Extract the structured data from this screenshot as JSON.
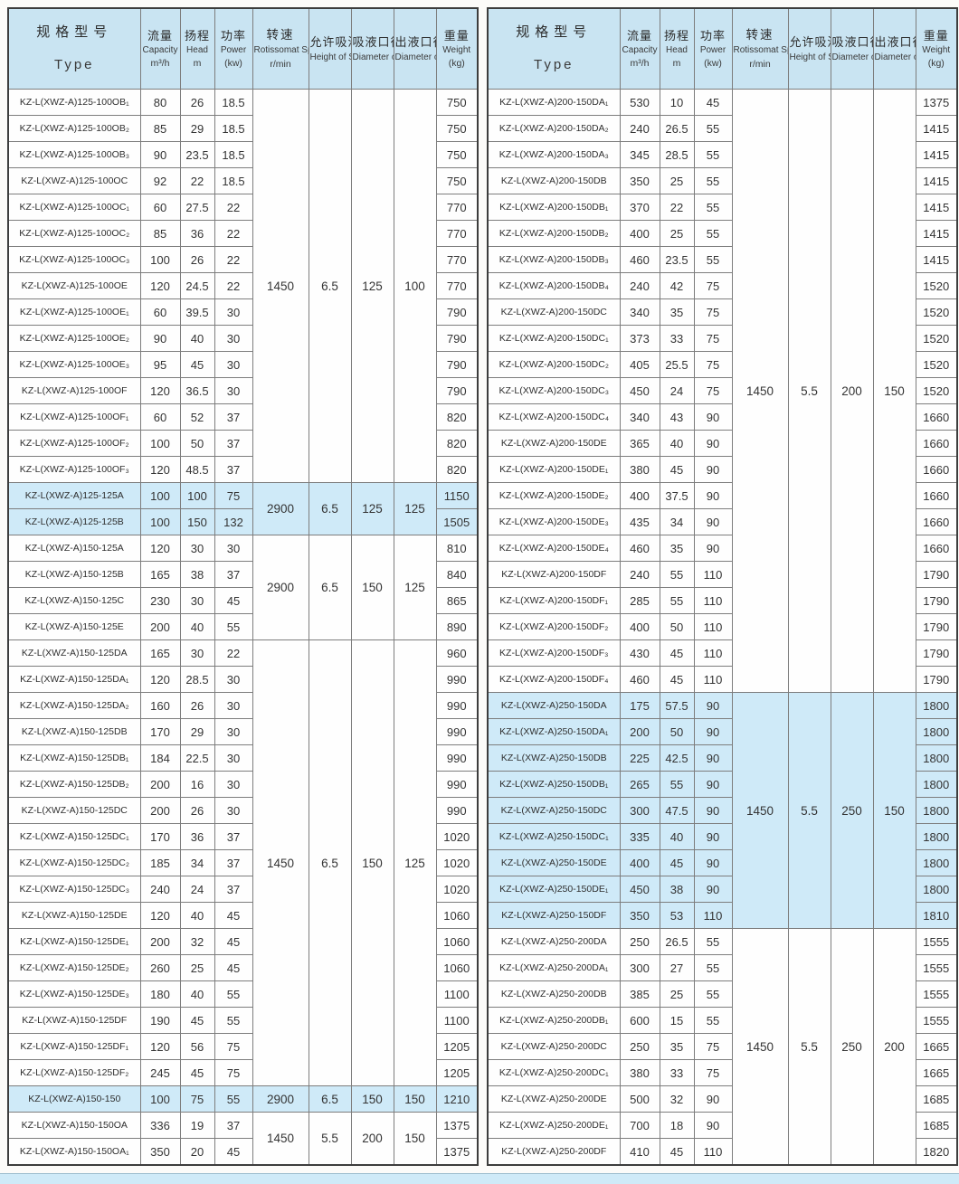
{
  "columns": [
    {
      "zh": "规格型号",
      "en": "Type"
    },
    {
      "zh": "流量",
      "en": "Capacity",
      "unit": "m³/h"
    },
    {
      "zh": "扬程",
      "en": "Head",
      "unit": "m"
    },
    {
      "zh": "功率",
      "en": "Power",
      "unit": "(kw)"
    },
    {
      "zh": "转速",
      "en": "Rotissomat Speed",
      "unit": "r/min"
    },
    {
      "zh": "允许吸深",
      "en": "Height of Suciton"
    },
    {
      "zh": "吸液口径",
      "en": "Diameter of Inlet"
    },
    {
      "zh": "出液口径",
      "en": "Diameter of Outlet"
    },
    {
      "zh": "重量",
      "en": "Weight",
      "unit": "(kg)"
    }
  ],
  "tables": [
    {
      "rows": [
        {
          "type": "KZ-L(XWZ-A)125-100OB₁",
          "capacity": "80",
          "head": "26",
          "power": "18.5",
          "weight": "750"
        },
        {
          "type": "KZ-L(XWZ-A)125-100OB₂",
          "capacity": "85",
          "head": "29",
          "power": "18.5",
          "weight": "750"
        },
        {
          "type": "KZ-L(XWZ-A)125-100OB₃",
          "capacity": "90",
          "head": "23.5",
          "power": "18.5",
          "weight": "750"
        },
        {
          "type": "KZ-L(XWZ-A)125-100OC",
          "capacity": "92",
          "head": "22",
          "power": "18.5",
          "weight": "750"
        },
        {
          "type": "KZ-L(XWZ-A)125-100OC₁",
          "capacity": "60",
          "head": "27.5",
          "power": "22",
          "weight": "770"
        },
        {
          "type": "KZ-L(XWZ-A)125-100OC₂",
          "capacity": "85",
          "head": "36",
          "power": "22",
          "weight": "770"
        },
        {
          "type": "KZ-L(XWZ-A)125-100OC₃",
          "capacity": "100",
          "head": "26",
          "power": "22",
          "weight": "770"
        },
        {
          "type": "KZ-L(XWZ-A)125-100OE",
          "capacity": "120",
          "head": "24.5",
          "power": "22",
          "weight": "770"
        },
        {
          "type": "KZ-L(XWZ-A)125-100OE₁",
          "capacity": "60",
          "head": "39.5",
          "power": "30",
          "weight": "790"
        },
        {
          "type": "KZ-L(XWZ-A)125-100OE₂",
          "capacity": "90",
          "head": "40",
          "power": "30",
          "weight": "790"
        },
        {
          "type": "KZ-L(XWZ-A)125-100OE₃",
          "capacity": "95",
          "head": "45",
          "power": "30",
          "weight": "790"
        },
        {
          "type": "KZ-L(XWZ-A)125-100OF",
          "capacity": "120",
          "head": "36.5",
          "power": "30",
          "weight": "790"
        },
        {
          "type": "KZ-L(XWZ-A)125-100OF₁",
          "capacity": "60",
          "head": "52",
          "power": "37",
          "weight": "820"
        },
        {
          "type": "KZ-L(XWZ-A)125-100OF₂",
          "capacity": "100",
          "head": "50",
          "power": "37",
          "weight": "820"
        },
        {
          "type": "KZ-L(XWZ-A)125-100OF₃",
          "capacity": "120",
          "head": "48.5",
          "power": "37",
          "weight": "820"
        },
        {
          "type": "KZ-L(XWZ-A)125-125A",
          "capacity": "100",
          "head": "100",
          "power": "75",
          "weight": "1150",
          "highlight": true
        },
        {
          "type": "KZ-L(XWZ-A)125-125B",
          "capacity": "100",
          "head": "150",
          "power": "132",
          "weight": "1505",
          "highlight": true
        },
        {
          "type": "KZ-L(XWZ-A)150-125A",
          "capacity": "120",
          "head": "30",
          "power": "30",
          "weight": "810"
        },
        {
          "type": "KZ-L(XWZ-A)150-125B",
          "capacity": "165",
          "head": "38",
          "power": "37",
          "weight": "840"
        },
        {
          "type": "KZ-L(XWZ-A)150-125C",
          "capacity": "230",
          "head": "30",
          "power": "45",
          "weight": "865"
        },
        {
          "type": "KZ-L(XWZ-A)150-125E",
          "capacity": "200",
          "head": "40",
          "power": "55",
          "weight": "890"
        },
        {
          "type": "KZ-L(XWZ-A)150-125DA",
          "capacity": "165",
          "head": "30",
          "power": "22",
          "weight": "960"
        },
        {
          "type": "KZ-L(XWZ-A)150-125DA₁",
          "capacity": "120",
          "head": "28.5",
          "power": "30",
          "weight": "990"
        },
        {
          "type": "KZ-L(XWZ-A)150-125DA₂",
          "capacity": "160",
          "head": "26",
          "power": "30",
          "weight": "990"
        },
        {
          "type": "KZ-L(XWZ-A)150-125DB",
          "capacity": "170",
          "head": "29",
          "power": "30",
          "weight": "990"
        },
        {
          "type": "KZ-L(XWZ-A)150-125DB₁",
          "capacity": "184",
          "head": "22.5",
          "power": "30",
          "weight": "990"
        },
        {
          "type": "KZ-L(XWZ-A)150-125DB₂",
          "capacity": "200",
          "head": "16",
          "power": "30",
          "weight": "990"
        },
        {
          "type": "KZ-L(XWZ-A)150-125DC",
          "capacity": "200",
          "head": "26",
          "power": "30",
          "weight": "990"
        },
        {
          "type": "KZ-L(XWZ-A)150-125DC₁",
          "capacity": "170",
          "head": "36",
          "power": "37",
          "weight": "1020"
        },
        {
          "type": "KZ-L(XWZ-A)150-125DC₂",
          "capacity": "185",
          "head": "34",
          "power": "37",
          "weight": "1020"
        },
        {
          "type": "KZ-L(XWZ-A)150-125DC₃",
          "capacity": "240",
          "head": "24",
          "power": "37",
          "weight": "1020"
        },
        {
          "type": "KZ-L(XWZ-A)150-125DE",
          "capacity": "120",
          "head": "40",
          "power": "45",
          "weight": "1060"
        },
        {
          "type": "KZ-L(XWZ-A)150-125DE₁",
          "capacity": "200",
          "head": "32",
          "power": "45",
          "weight": "1060"
        },
        {
          "type": "KZ-L(XWZ-A)150-125DE₂",
          "capacity": "260",
          "head": "25",
          "power": "45",
          "weight": "1060"
        },
        {
          "type": "KZ-L(XWZ-A)150-125DE₃",
          "capacity": "180",
          "head": "40",
          "power": "55",
          "weight": "1100"
        },
        {
          "type": "KZ-L(XWZ-A)150-125DF",
          "capacity": "190",
          "head": "45",
          "power": "55",
          "weight": "1100"
        },
        {
          "type": "KZ-L(XWZ-A)150-125DF₁",
          "capacity": "120",
          "head": "56",
          "power": "75",
          "weight": "1205"
        },
        {
          "type": "KZ-L(XWZ-A)150-125DF₂",
          "capacity": "245",
          "head": "45",
          "power": "75",
          "weight": "1205"
        },
        {
          "type": "KZ-L(XWZ-A)150-150",
          "capacity": "100",
          "head": "75",
          "power": "55",
          "weight": "1210",
          "highlight": true
        },
        {
          "type": "KZ-L(XWZ-A)150-150OA",
          "capacity": "336",
          "head": "19",
          "power": "37",
          "weight": "1375"
        },
        {
          "type": "KZ-L(XWZ-A)150-150OA₁",
          "capacity": "350",
          "head": "20",
          "power": "45",
          "weight": "1375"
        }
      ],
      "groups": [
        {
          "start": 0,
          "span": 15,
          "speed": "1450",
          "suction": "6.5",
          "inlet": "125",
          "outlet": "100"
        },
        {
          "start": 15,
          "span": 2,
          "speed": "2900",
          "suction": "6.5",
          "inlet": "125",
          "outlet": "125",
          "highlight": true
        },
        {
          "start": 17,
          "span": 4,
          "speed": "2900",
          "suction": "6.5",
          "inlet": "150",
          "outlet": "125"
        },
        {
          "start": 21,
          "span": 17,
          "speed": "1450",
          "suction": "6.5",
          "inlet": "150",
          "outlet": "125"
        },
        {
          "start": 38,
          "span": 1,
          "speed": "2900",
          "suction": "6.5",
          "inlet": "150",
          "outlet": "150",
          "highlight": true
        },
        {
          "start": 39,
          "span": 2,
          "speed": "1450",
          "suction": "5.5",
          "inlet": "200",
          "outlet": "150"
        }
      ]
    },
    {
      "rows": [
        {
          "type": "KZ-L(XWZ-A)200-150DA₁",
          "capacity": "530",
          "head": "10",
          "power": "45",
          "weight": "1375"
        },
        {
          "type": "KZ-L(XWZ-A)200-150DA₂",
          "capacity": "240",
          "head": "26.5",
          "power": "55",
          "weight": "1415"
        },
        {
          "type": "KZ-L(XWZ-A)200-150DA₃",
          "capacity": "345",
          "head": "28.5",
          "power": "55",
          "weight": "1415"
        },
        {
          "type": "KZ-L(XWZ-A)200-150DB",
          "capacity": "350",
          "head": "25",
          "power": "55",
          "weight": "1415"
        },
        {
          "type": "KZ-L(XWZ-A)200-150DB₁",
          "capacity": "370",
          "head": "22",
          "power": "55",
          "weight": "1415"
        },
        {
          "type": "KZ-L(XWZ-A)200-150DB₂",
          "capacity": "400",
          "head": "25",
          "power": "55",
          "weight": "1415"
        },
        {
          "type": "KZ-L(XWZ-A)200-150DB₃",
          "capacity": "460",
          "head": "23.5",
          "power": "55",
          "weight": "1415"
        },
        {
          "type": "KZ-L(XWZ-A)200-150DB₄",
          "capacity": "240",
          "head": "42",
          "power": "75",
          "weight": "1520"
        },
        {
          "type": "KZ-L(XWZ-A)200-150DC",
          "capacity": "340",
          "head": "35",
          "power": "75",
          "weight": "1520"
        },
        {
          "type": "KZ-L(XWZ-A)200-150DC₁",
          "capacity": "373",
          "head": "33",
          "power": "75",
          "weight": "1520"
        },
        {
          "type": "KZ-L(XWZ-A)200-150DC₂",
          "capacity": "405",
          "head": "25.5",
          "power": "75",
          "weight": "1520"
        },
        {
          "type": "KZ-L(XWZ-A)200-150DC₃",
          "capacity": "450",
          "head": "24",
          "power": "75",
          "weight": "1520"
        },
        {
          "type": "KZ-L(XWZ-A)200-150DC₄",
          "capacity": "340",
          "head": "43",
          "power": "90",
          "weight": "1660"
        },
        {
          "type": "KZ-L(XWZ-A)200-150DE",
          "capacity": "365",
          "head": "40",
          "power": "90",
          "weight": "1660"
        },
        {
          "type": "KZ-L(XWZ-A)200-150DE₁",
          "capacity": "380",
          "head": "45",
          "power": "90",
          "weight": "1660"
        },
        {
          "type": "KZ-L(XWZ-A)200-150DE₂",
          "capacity": "400",
          "head": "37.5",
          "power": "90",
          "weight": "1660"
        },
        {
          "type": "KZ-L(XWZ-A)200-150DE₃",
          "capacity": "435",
          "head": "34",
          "power": "90",
          "weight": "1660"
        },
        {
          "type": "KZ-L(XWZ-A)200-150DE₄",
          "capacity": "460",
          "head": "35",
          "power": "90",
          "weight": "1660"
        },
        {
          "type": "KZ-L(XWZ-A)200-150DF",
          "capacity": "240",
          "head": "55",
          "power": "110",
          "weight": "1790"
        },
        {
          "type": "KZ-L(XWZ-A)200-150DF₁",
          "capacity": "285",
          "head": "55",
          "power": "110",
          "weight": "1790"
        },
        {
          "type": "KZ-L(XWZ-A)200-150DF₂",
          "capacity": "400",
          "head": "50",
          "power": "110",
          "weight": "1790"
        },
        {
          "type": "KZ-L(XWZ-A)200-150DF₃",
          "capacity": "430",
          "head": "45",
          "power": "110",
          "weight": "1790"
        },
        {
          "type": "KZ-L(XWZ-A)200-150DF₄",
          "capacity": "460",
          "head": "45",
          "power": "110",
          "weight": "1790"
        },
        {
          "type": "KZ-L(XWZ-A)250-150DA",
          "capacity": "175",
          "head": "57.5",
          "power": "90",
          "weight": "1800",
          "highlight": true
        },
        {
          "type": "KZ-L(XWZ-A)250-150DA₁",
          "capacity": "200",
          "head": "50",
          "power": "90",
          "weight": "1800",
          "highlight": true
        },
        {
          "type": "KZ-L(XWZ-A)250-150DB",
          "capacity": "225",
          "head": "42.5",
          "power": "90",
          "weight": "1800",
          "highlight": true
        },
        {
          "type": "KZ-L(XWZ-A)250-150DB₁",
          "capacity": "265",
          "head": "55",
          "power": "90",
          "weight": "1800",
          "highlight": true
        },
        {
          "type": "KZ-L(XWZ-A)250-150DC",
          "capacity": "300",
          "head": "47.5",
          "power": "90",
          "weight": "1800",
          "highlight": true
        },
        {
          "type": "KZ-L(XWZ-A)250-150DC₁",
          "capacity": "335",
          "head": "40",
          "power": "90",
          "weight": "1800",
          "highlight": true
        },
        {
          "type": "KZ-L(XWZ-A)250-150DE",
          "capacity": "400",
          "head": "45",
          "power": "90",
          "weight": "1800",
          "highlight": true
        },
        {
          "type": "KZ-L(XWZ-A)250-150DE₁",
          "capacity": "450",
          "head": "38",
          "power": "90",
          "weight": "1800",
          "highlight": true
        },
        {
          "type": "KZ-L(XWZ-A)250-150DF",
          "capacity": "350",
          "head": "53",
          "power": "110",
          "weight": "1810",
          "highlight": true
        },
        {
          "type": "KZ-L(XWZ-A)250-200DA",
          "capacity": "250",
          "head": "26.5",
          "power": "55",
          "weight": "1555"
        },
        {
          "type": "KZ-L(XWZ-A)250-200DA₁",
          "capacity": "300",
          "head": "27",
          "power": "55",
          "weight": "1555"
        },
        {
          "type": "KZ-L(XWZ-A)250-200DB",
          "capacity": "385",
          "head": "25",
          "power": "55",
          "weight": "1555"
        },
        {
          "type": "KZ-L(XWZ-A)250-200DB₁",
          "capacity": "600",
          "head": "15",
          "power": "55",
          "weight": "1555"
        },
        {
          "type": "KZ-L(XWZ-A)250-200DC",
          "capacity": "250",
          "head": "35",
          "power": "75",
          "weight": "1665"
        },
        {
          "type": "KZ-L(XWZ-A)250-200DC₁",
          "capacity": "380",
          "head": "33",
          "power": "75",
          "weight": "1665"
        },
        {
          "type": "KZ-L(XWZ-A)250-200DE",
          "capacity": "500",
          "head": "32",
          "power": "90",
          "weight": "1685"
        },
        {
          "type": "KZ-L(XWZ-A)250-200DE₁",
          "capacity": "700",
          "head": "18",
          "power": "90",
          "weight": "1685"
        },
        {
          "type": "KZ-L(XWZ-A)250-200DF",
          "capacity": "410",
          "head": "45",
          "power": "110",
          "weight": "1820"
        }
      ],
      "groups": [
        {
          "start": 0,
          "span": 23,
          "speed": "1450",
          "suction": "5.5",
          "inlet": "200",
          "outlet": "150"
        },
        {
          "start": 23,
          "span": 9,
          "speed": "1450",
          "suction": "5.5",
          "inlet": "250",
          "outlet": "150",
          "highlight": true
        },
        {
          "start": 32,
          "span": 9,
          "speed": "1450",
          "suction": "5.5",
          "inlet": "250",
          "outlet": "200"
        }
      ]
    }
  ],
  "colors": {
    "header_bg": "#c9e4f2",
    "highlight_bg": "#cfeaf8",
    "border": "#3d3d3d"
  }
}
